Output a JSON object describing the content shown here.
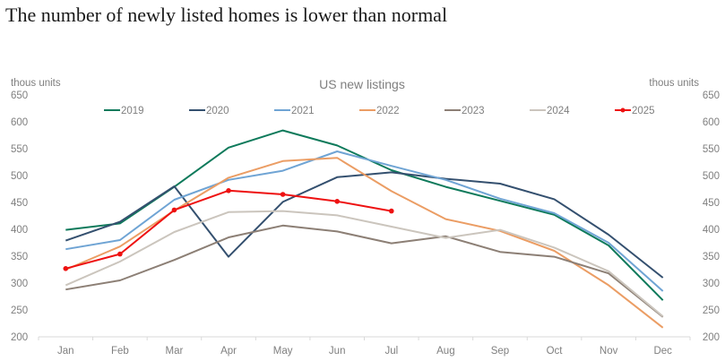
{
  "headline": "The number of newly listed homes is lower than normal",
  "chart_data": {
    "type": "line",
    "title": "US new listings",
    "ylabel_left": "thous units",
    "ylabel_right": "thous units",
    "xlabel": "",
    "ylim": [
      200,
      650
    ],
    "yticks": [
      650,
      600,
      550,
      500,
      450,
      400,
      350,
      300,
      250,
      200
    ],
    "grid": false,
    "legend_position": "top",
    "categories": [
      "Jan",
      "Feb",
      "Mar",
      "Apr",
      "May",
      "Jun",
      "Jul",
      "Aug",
      "Sep",
      "Oct",
      "Nov",
      "Dec"
    ],
    "series": [
      {
        "name": "2019",
        "color": "#0e7a5b",
        "markers": false,
        "values": [
          399,
          411,
          479,
          552,
          584,
          556,
          510,
          479,
          453,
          427,
          370,
          268
        ]
      },
      {
        "name": "2020",
        "color": "#34506f",
        "markers": false,
        "values": [
          379,
          414,
          480,
          349,
          451,
          497,
          506,
          494,
          485,
          456,
          390,
          310
        ]
      },
      {
        "name": "2021",
        "color": "#6fa4d4",
        "markers": false,
        "values": [
          363,
          380,
          455,
          492,
          509,
          545,
          518,
          492,
          457,
          430,
          375,
          285
        ]
      },
      {
        "name": "2022",
        "color": "#eb9d64",
        "markers": false,
        "values": [
          325,
          368,
          435,
          496,
          527,
          533,
          471,
          419,
          397,
          360,
          296,
          217
        ]
      },
      {
        "name": "2023",
        "color": "#8c7f75",
        "markers": false,
        "values": [
          288,
          305,
          343,
          385,
          407,
          396,
          374,
          387,
          358,
          349,
          318,
          237
        ]
      },
      {
        "name": "2024",
        "color": "#cbc5bd",
        "markers": false,
        "values": [
          296,
          340,
          395,
          432,
          434,
          426,
          405,
          384,
          399,
          366,
          322,
          238
        ]
      },
      {
        "name": "2025",
        "color": "#ee1111",
        "markers": true,
        "values": [
          327,
          354,
          436,
          472,
          465,
          452,
          434
        ]
      }
    ]
  }
}
